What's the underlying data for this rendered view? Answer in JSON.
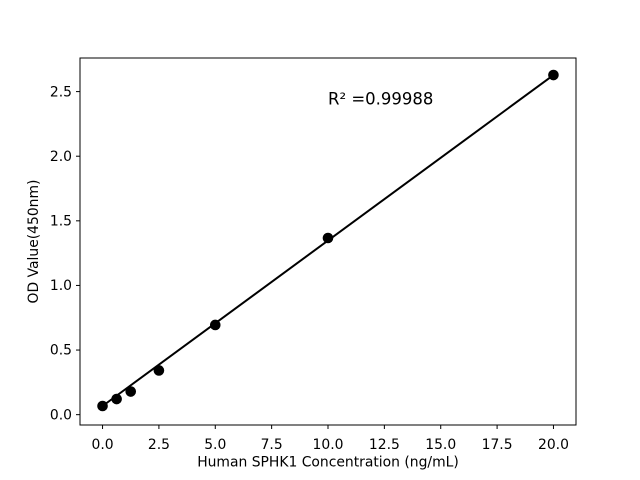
{
  "chart_data": {
    "type": "scatter",
    "title": "",
    "xlabel": "Human SPHK1 Concentration (ng/mL)",
    "ylabel": "OD Value(450nm)",
    "annotation": {
      "text": "R² =0.99988",
      "x": 10,
      "y": 2.4
    },
    "x": [
      0,
      0.625,
      1.25,
      2.5,
      5,
      10,
      20
    ],
    "y": [
      0.067,
      0.121,
      0.179,
      0.342,
      0.694,
      1.367,
      2.628
    ],
    "fit_line": {
      "x": [
        0,
        20
      ],
      "y": [
        0.067,
        2.628
      ]
    },
    "xlim": [
      -1,
      21
    ],
    "ylim": [
      -0.08,
      2.76
    ],
    "xticks": {
      "values": [
        0,
        2.5,
        5,
        7.5,
        10,
        12.5,
        15,
        17.5,
        20
      ],
      "labels": [
        "0.0",
        "2.5",
        "5.0",
        "7.5",
        "10.0",
        "12.5",
        "15.0",
        "17.5",
        "20.0"
      ]
    },
    "yticks": {
      "values": [
        0,
        0.5,
        1,
        1.5,
        2,
        2.5
      ],
      "labels": [
        "0.0",
        "0.5",
        "1.0",
        "1.5",
        "2.0",
        "2.5"
      ]
    },
    "grid": false,
    "legend": null,
    "colors": {
      "marker": "#000000",
      "line": "#000000",
      "text": "#000000",
      "background": "#ffffff"
    }
  }
}
